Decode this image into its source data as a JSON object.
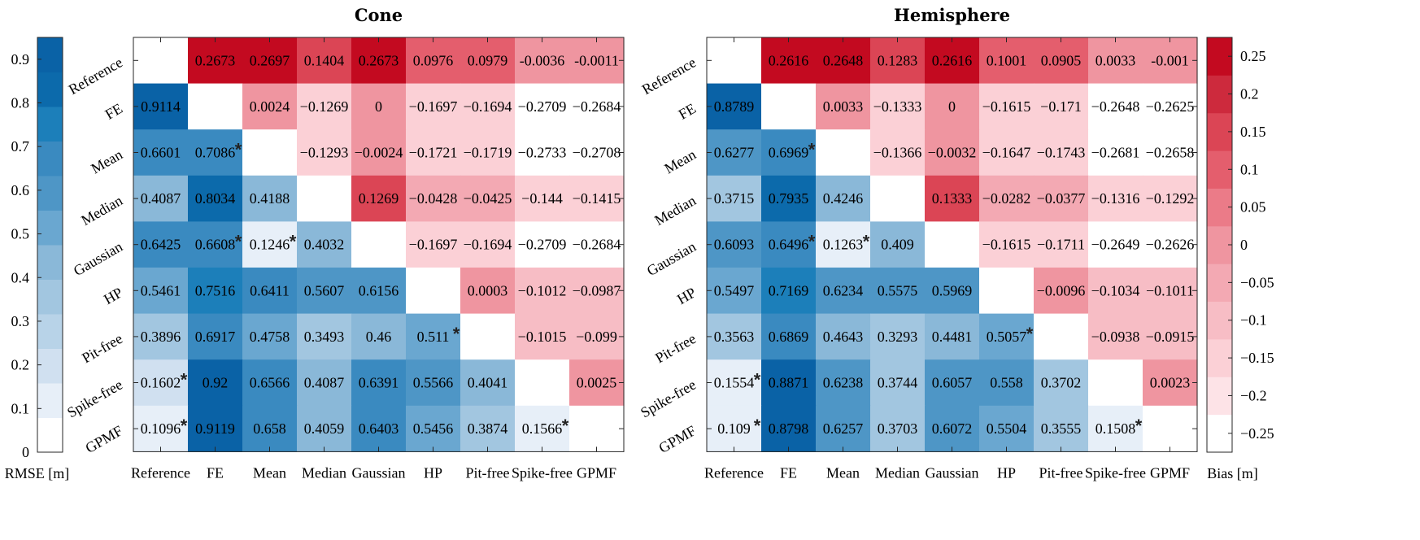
{
  "chart_data": [
    {
      "type": "heatmap",
      "title": "Cone",
      "categories": [
        "Reference",
        "FE",
        "Mean",
        "Median",
        "Gaussian",
        "HP",
        "Pit-free",
        "Spike-free",
        "GPMF"
      ],
      "cells": [
        [
          "",
          "0.2673",
          "0.2697",
          "0.1404",
          "0.2673",
          "0.0976",
          "0.0979",
          "-0.0036",
          "-0.0011"
        ],
        [
          "0.9114",
          "",
          "0.0024",
          "−0.1269",
          "0",
          "−0.1697",
          "−0.1694",
          "−0.2709",
          "−0.2684"
        ],
        [
          "0.6601",
          "0.7086",
          "",
          "−0.1293",
          "−0.0024",
          "−0.1721",
          "−0.1719",
          "−0.2733",
          "−0.2708"
        ],
        [
          "0.4087",
          "0.8034",
          "0.4188",
          "",
          "0.1269",
          "−0.0428",
          "−0.0425",
          "−0.144",
          "−0.1415"
        ],
        [
          "0.6425",
          "0.6608",
          "0.1246",
          "0.4032",
          "",
          "−0.1697",
          "−0.1694",
          "−0.2709",
          "−0.2684"
        ],
        [
          "0.5461",
          "0.7516",
          "0.6411",
          "0.5607",
          "0.6156",
          "",
          "0.0003",
          "−0.1012",
          "−0.0987"
        ],
        [
          "0.3896",
          "0.6917",
          "0.4758",
          "0.3493",
          "0.46",
          "0.511",
          "",
          "−0.1015",
          "−0.099"
        ],
        [
          "0.1602",
          "0.92",
          "0.6566",
          "0.4087",
          "0.6391",
          "0.5566",
          "0.4041",
          "",
          "0.0025"
        ],
        [
          "0.1096",
          "0.9119",
          "0.658",
          "0.4059",
          "0.6403",
          "0.5456",
          "0.3874",
          "0.1566",
          ""
        ]
      ],
      "stars": [
        [
          2,
          1
        ],
        [
          4,
          1
        ],
        [
          4,
          2
        ],
        [
          6,
          5
        ],
        [
          7,
          0
        ],
        [
          8,
          0
        ],
        [
          8,
          7
        ]
      ],
      "rmse_colorbar": {
        "label": "RMSE [m]",
        "ticks": [
          "0",
          "0.1",
          "0.2",
          "0.3",
          "0.4",
          "0.5",
          "0.6",
          "0.7",
          "0.8",
          "0.9"
        ],
        "range": [
          0,
          0.95
        ]
      }
    },
    {
      "type": "heatmap",
      "title": "Hemisphere",
      "categories": [
        "Reference",
        "FE",
        "Mean",
        "Median",
        "Gaussian",
        "HP",
        "Pit-free",
        "Spike-free",
        "GPMF"
      ],
      "cells": [
        [
          "",
          "0.2616",
          "0.2648",
          "0.1283",
          "0.2616",
          "0.1001",
          "0.0905",
          "0.0033",
          "-0.001"
        ],
        [
          "0.8789",
          "",
          "0.0033",
          "−0.1333",
          "0",
          "−0.1615",
          "−0.171",
          "−0.2648",
          "−0.2625"
        ],
        [
          "0.6277",
          "0.6969",
          "",
          "−0.1366",
          "−0.0032",
          "−0.1647",
          "−0.1743",
          "−0.2681",
          "−0.2658"
        ],
        [
          "0.3715",
          "0.7935",
          "0.4246",
          "",
          "0.1333",
          "−0.0282",
          "−0.0377",
          "−0.1316",
          "−0.1292"
        ],
        [
          "0.6093",
          "0.6496",
          "0.1263",
          "0.409",
          "",
          "−0.1615",
          "−0.1711",
          "−0.2649",
          "−0.2626"
        ],
        [
          "0.5497",
          "0.7169",
          "0.6234",
          "0.5575",
          "0.5969",
          "",
          "−0.0096",
          "−0.1034",
          "−0.1011"
        ],
        [
          "0.3563",
          "0.6869",
          "0.4643",
          "0.3293",
          "0.4481",
          "0.5057",
          "",
          "−0.0938",
          "−0.0915"
        ],
        [
          "0.1554",
          "0.8871",
          "0.6238",
          "0.3744",
          "0.6057",
          "0.558",
          "0.3702",
          "",
          "0.0023"
        ],
        [
          "0.109",
          "0.8798",
          "0.6257",
          "0.3703",
          "0.6072",
          "0.5504",
          "0.3555",
          "0.1508",
          ""
        ]
      ],
      "stars": [
        [
          2,
          1
        ],
        [
          4,
          1
        ],
        [
          4,
          2
        ],
        [
          6,
          5
        ],
        [
          7,
          0
        ],
        [
          8,
          0
        ],
        [
          8,
          7
        ]
      ],
      "bias_colorbar": {
        "label": "Bias [m]",
        "ticks": [
          "0.25",
          "0.2",
          "0.15",
          "0.1",
          "0.05",
          "0",
          "−0.05",
          "−0.1",
          "−0.15",
          "−0.2",
          "−0.25"
        ],
        "range": [
          -0.275,
          0.275
        ]
      }
    }
  ],
  "colors": {
    "blue_scale": [
      "#ffffff",
      "#e7eff8",
      "#d0e0f0",
      "#b8d3e8",
      "#a2c6e0",
      "#8ab8d8",
      "#6aa7d0",
      "#4e96c6",
      "#3a8ac0",
      "#1c7fba",
      "#0c6aab",
      "#0a62a6"
    ],
    "red_scale": [
      "#ffffff",
      "#fde3e7",
      "#fbd0d6",
      "#f7bdc5",
      "#f3a9b3",
      "#ef95a0",
      "#eb7b88",
      "#e45e6d",
      "#db4555",
      "#cd2a3d",
      "#c30a20"
    ]
  }
}
